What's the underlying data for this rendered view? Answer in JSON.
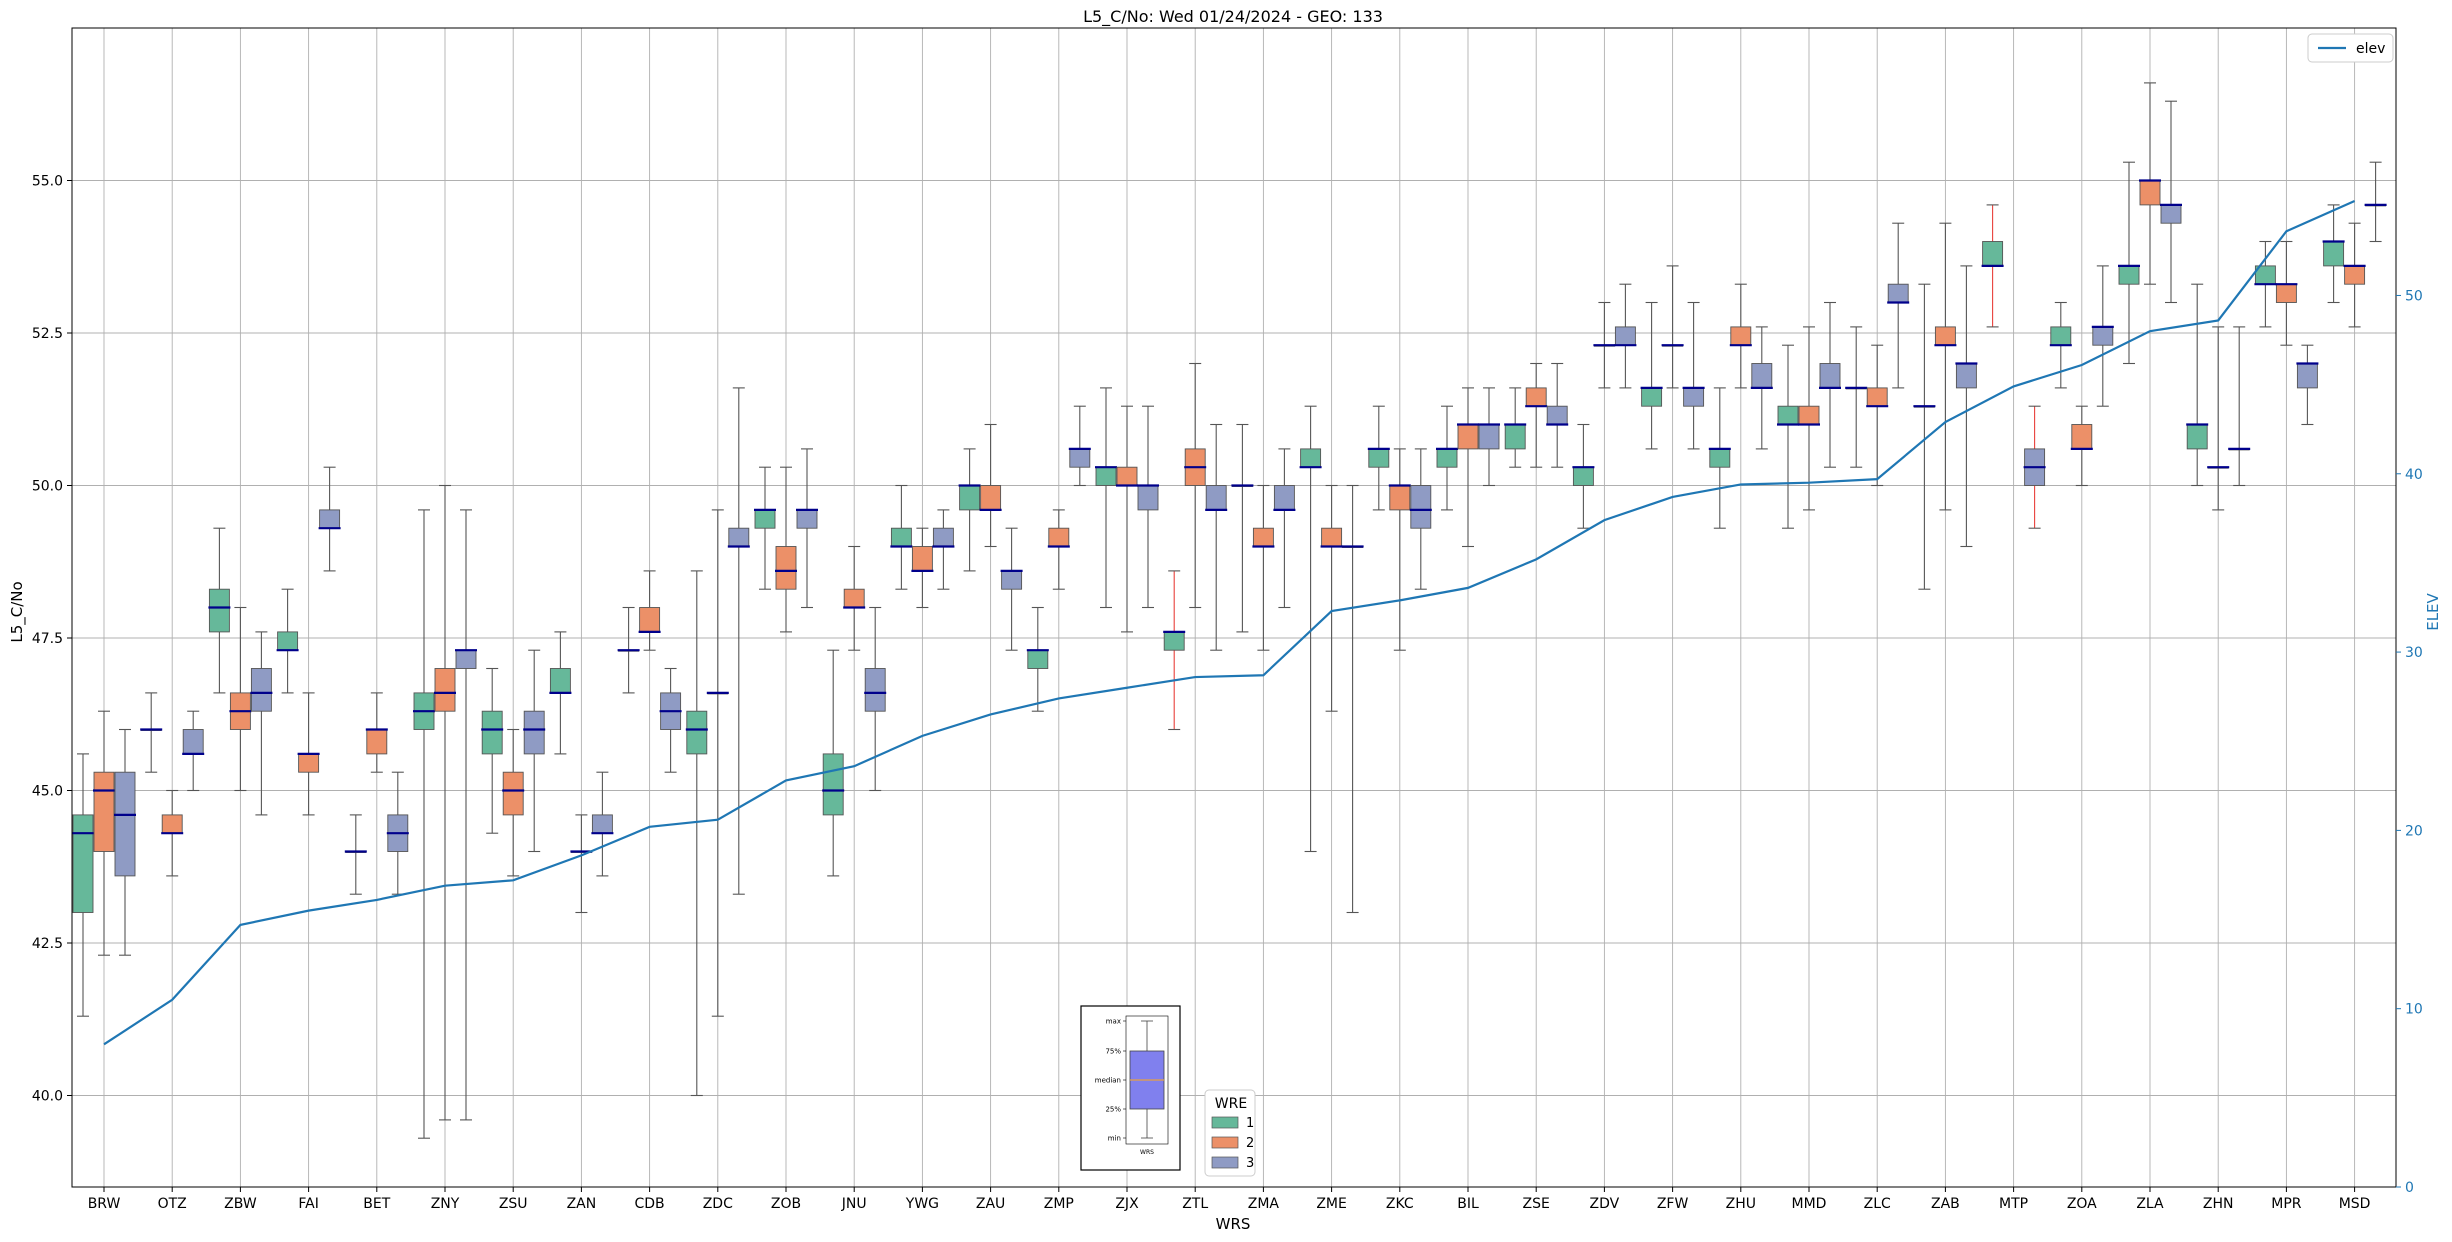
{
  "chart_data": {
    "type": "boxplot",
    "title": "L5_C/No: Wed 01/24/2024 - GEO: 133",
    "xlabel": "WRS",
    "ylabel": "L5_C/No",
    "y2label": "ELEV",
    "ylim": [
      38.5,
      57.5
    ],
    "y2lim": [
      0,
      65
    ],
    "yticks": [
      40.0,
      42.5,
      45.0,
      47.5,
      50.0,
      52.5,
      55.0
    ],
    "ytick_labels": [
      "40.0",
      "42.5",
      "45.0",
      "47.5",
      "50.0",
      "52.5",
      "55.0"
    ],
    "y2ticks": [
      0,
      10,
      20,
      30,
      40,
      50
    ],
    "y2tick_labels": [
      "0",
      "10",
      "20",
      "30",
      "40",
      "50"
    ],
    "grid": true,
    "categories": [
      "BRW",
      "OTZ",
      "ZBW",
      "FAI",
      "BET",
      "ZNY",
      "ZSU",
      "ZAN",
      "CDB",
      "ZDC",
      "ZOB",
      "JNU",
      "YWG",
      "ZAU",
      "ZMP",
      "ZJX",
      "ZTL",
      "ZMA",
      "ZME",
      "ZKC",
      "BIL",
      "ZSE",
      "ZDV",
      "ZFW",
      "ZHU",
      "MMD",
      "ZLC",
      "ZAB",
      "MTP",
      "ZOA",
      "ZLA",
      "ZHN",
      "MPR",
      "MSD"
    ],
    "wre_colors": {
      "1": "#66b89a",
      "2": "#ec9068",
      "3": "#8f9bc4"
    },
    "wre_legend": {
      "title": "WRE",
      "entries": [
        "1",
        "2",
        "3"
      ],
      "placement": "bottom-center"
    },
    "elev_legend": {
      "label": "elev",
      "placement": "top-right",
      "color": "#1f77b4"
    },
    "median_color": "#00008b",
    "outlier_whisker_color": "#e8413b",
    "boxes": [
      {
        "site": "BRW",
        "wre": "1",
        "min": 41.3,
        "q1": 43.0,
        "median": 44.3,
        "q3": 44.6,
        "max": 45.6
      },
      {
        "site": "BRW",
        "wre": "2",
        "min": 42.3,
        "q1": 44.0,
        "median": 45.0,
        "q3": 45.3,
        "max": 46.3
      },
      {
        "site": "BRW",
        "wre": "3",
        "min": 42.3,
        "q1": 43.6,
        "median": 44.6,
        "q3": 45.3,
        "max": 46.0
      },
      {
        "site": "OTZ",
        "wre": "1",
        "min": 45.3,
        "q1": 46.0,
        "median": 46.0,
        "q3": 46.0,
        "max": 46.6
      },
      {
        "site": "OTZ",
        "wre": "2",
        "min": 43.6,
        "q1": 44.3,
        "median": 44.3,
        "q3": 44.6,
        "max": 45.0
      },
      {
        "site": "OTZ",
        "wre": "3",
        "min": 45.0,
        "q1": 45.6,
        "median": 45.6,
        "q3": 46.0,
        "max": 46.3
      },
      {
        "site": "ZBW",
        "wre": "1",
        "min": 46.6,
        "q1": 47.6,
        "median": 48.0,
        "q3": 48.3,
        "max": 49.3
      },
      {
        "site": "ZBW",
        "wre": "2",
        "min": 45.0,
        "q1": 46.0,
        "median": 46.3,
        "q3": 46.6,
        "max": 48.0
      },
      {
        "site": "ZBW",
        "wre": "3",
        "min": 44.6,
        "q1": 46.3,
        "median": 46.6,
        "q3": 47.0,
        "max": 47.6
      },
      {
        "site": "FAI",
        "wre": "1",
        "min": 46.6,
        "q1": 47.3,
        "median": 47.3,
        "q3": 47.6,
        "max": 48.3
      },
      {
        "site": "FAI",
        "wre": "2",
        "min": 44.6,
        "q1": 45.3,
        "median": 45.6,
        "q3": 45.6,
        "max": 46.6
      },
      {
        "site": "FAI",
        "wre": "3",
        "min": 48.6,
        "q1": 49.3,
        "median": 49.3,
        "q3": 49.6,
        "max": 50.3
      },
      {
        "site": "BET",
        "wre": "1",
        "min": 43.3,
        "q1": 44.0,
        "median": 44.0,
        "q3": 44.0,
        "max": 44.6
      },
      {
        "site": "BET",
        "wre": "2",
        "min": 45.3,
        "q1": 45.6,
        "median": 46.0,
        "q3": 46.0,
        "max": 46.6
      },
      {
        "site": "BET",
        "wre": "3",
        "min": 43.3,
        "q1": 44.0,
        "median": 44.3,
        "q3": 44.6,
        "max": 45.3
      },
      {
        "site": "ZNY",
        "wre": "1",
        "min": 39.3,
        "q1": 46.0,
        "median": 46.3,
        "q3": 46.6,
        "max": 49.6
      },
      {
        "site": "ZNY",
        "wre": "2",
        "min": 39.6,
        "q1": 46.3,
        "median": 46.6,
        "q3": 47.0,
        "max": 50.0
      },
      {
        "site": "ZNY",
        "wre": "3",
        "min": 39.6,
        "q1": 47.0,
        "median": 47.3,
        "q3": 47.3,
        "max": 49.6
      },
      {
        "site": "ZSU",
        "wre": "1",
        "min": 44.3,
        "q1": 45.6,
        "median": 46.0,
        "q3": 46.3,
        "max": 47.0
      },
      {
        "site": "ZSU",
        "wre": "2",
        "min": 43.6,
        "q1": 44.6,
        "median": 45.0,
        "q3": 45.3,
        "max": 46.0
      },
      {
        "site": "ZSU",
        "wre": "3",
        "min": 44.0,
        "q1": 45.6,
        "median": 46.0,
        "q3": 46.3,
        "max": 47.3
      },
      {
        "site": "ZAN",
        "wre": "1",
        "min": 45.6,
        "q1": 46.6,
        "median": 46.6,
        "q3": 47.0,
        "max": 47.6
      },
      {
        "site": "ZAN",
        "wre": "2",
        "min": 43.0,
        "q1": 44.0,
        "median": 44.0,
        "q3": 44.0,
        "max": 44.6
      },
      {
        "site": "ZAN",
        "wre": "3",
        "min": 43.6,
        "q1": 44.3,
        "median": 44.3,
        "q3": 44.6,
        "max": 45.3
      },
      {
        "site": "CDB",
        "wre": "1",
        "min": 46.6,
        "q1": 47.3,
        "median": 47.3,
        "q3": 47.3,
        "max": 48.0
      },
      {
        "site": "CDB",
        "wre": "2",
        "min": 47.3,
        "q1": 47.6,
        "median": 47.6,
        "q3": 48.0,
        "max": 48.6
      },
      {
        "site": "CDB",
        "wre": "3",
        "min": 45.3,
        "q1": 46.0,
        "median": 46.3,
        "q3": 46.6,
        "max": 47.0
      },
      {
        "site": "ZDC",
        "wre": "1",
        "min": 40.0,
        "q1": 45.6,
        "median": 46.0,
        "q3": 46.3,
        "max": 48.6
      },
      {
        "site": "ZDC",
        "wre": "2",
        "min": 41.3,
        "q1": 46.6,
        "median": 46.6,
        "q3": 46.6,
        "max": 49.6
      },
      {
        "site": "ZDC",
        "wre": "3",
        "min": 43.3,
        "q1": 49.0,
        "median": 49.0,
        "q3": 49.3,
        "max": 51.6
      },
      {
        "site": "ZOB",
        "wre": "1",
        "min": 48.3,
        "q1": 49.3,
        "median": 49.6,
        "q3": 49.6,
        "max": 50.3
      },
      {
        "site": "ZOB",
        "wre": "2",
        "min": 47.6,
        "q1": 48.3,
        "median": 48.6,
        "q3": 49.0,
        "max": 50.3
      },
      {
        "site": "ZOB",
        "wre": "3",
        "min": 48.0,
        "q1": 49.3,
        "median": 49.6,
        "q3": 49.6,
        "max": 50.6
      },
      {
        "site": "JNU",
        "wre": "1",
        "min": 43.6,
        "q1": 44.6,
        "median": 45.0,
        "q3": 45.6,
        "max": 47.3
      },
      {
        "site": "JNU",
        "wre": "2",
        "min": 47.3,
        "q1": 48.0,
        "median": 48.0,
        "q3": 48.3,
        "max": 49.0
      },
      {
        "site": "JNU",
        "wre": "3",
        "min": 45.0,
        "q1": 46.3,
        "median": 46.6,
        "q3": 47.0,
        "max": 48.0
      },
      {
        "site": "YWG",
        "wre": "1",
        "min": 48.3,
        "q1": 49.0,
        "median": 49.0,
        "q3": 49.3,
        "max": 50.0
      },
      {
        "site": "YWG",
        "wre": "2",
        "min": 48.0,
        "q1": 48.6,
        "median": 48.6,
        "q3": 49.0,
        "max": 49.3
      },
      {
        "site": "YWG",
        "wre": "3",
        "min": 48.3,
        "q1": 49.0,
        "median": 49.0,
        "q3": 49.3,
        "max": 49.6
      },
      {
        "site": "ZAU",
        "wre": "1",
        "min": 48.6,
        "q1": 49.6,
        "median": 50.0,
        "q3": 50.0,
        "max": 50.6
      },
      {
        "site": "ZAU",
        "wre": "2",
        "min": 49.0,
        "q1": 49.6,
        "median": 49.6,
        "q3": 50.0,
        "max": 51.0
      },
      {
        "site": "ZAU",
        "wre": "3",
        "min": 47.3,
        "q1": 48.3,
        "median": 48.6,
        "q3": 48.6,
        "max": 49.3
      },
      {
        "site": "ZMP",
        "wre": "1",
        "min": 46.3,
        "q1": 47.0,
        "median": 47.3,
        "q3": 47.3,
        "max": 48.0
      },
      {
        "site": "ZMP",
        "wre": "2",
        "min": 48.3,
        "q1": 49.0,
        "median": 49.0,
        "q3": 49.3,
        "max": 49.6
      },
      {
        "site": "ZMP",
        "wre": "3",
        "min": 50.0,
        "q1": 50.3,
        "median": 50.6,
        "q3": 50.6,
        "max": 51.3
      },
      {
        "site": "ZJX",
        "wre": "1",
        "min": 48.0,
        "q1": 50.0,
        "median": 50.3,
        "q3": 50.3,
        "max": 51.6
      },
      {
        "site": "ZJX",
        "wre": "2",
        "min": 47.6,
        "q1": 50.0,
        "median": 50.0,
        "q3": 50.3,
        "max": 51.3
      },
      {
        "site": "ZJX",
        "wre": "3",
        "min": 48.0,
        "q1": 49.6,
        "median": 50.0,
        "q3": 50.0,
        "max": 51.3
      },
      {
        "site": "ZTL",
        "wre": "1",
        "min": 46.0,
        "q1": 47.3,
        "median": 47.6,
        "q3": 47.6,
        "max": 48.6,
        "outlier_whisker": true
      },
      {
        "site": "ZTL",
        "wre": "2",
        "min": 48.0,
        "q1": 50.0,
        "median": 50.3,
        "q3": 50.6,
        "max": 52.0
      },
      {
        "site": "ZTL",
        "wre": "3",
        "min": 47.3,
        "q1": 49.6,
        "median": 49.6,
        "q3": 50.0,
        "max": 51.0
      },
      {
        "site": "ZMA",
        "wre": "1",
        "min": 47.6,
        "q1": 50.0,
        "median": 50.0,
        "q3": 50.0,
        "max": 51.0
      },
      {
        "site": "ZMA",
        "wre": "2",
        "min": 47.3,
        "q1": 49.0,
        "median": 49.0,
        "q3": 49.3,
        "max": 50.0
      },
      {
        "site": "ZMA",
        "wre": "3",
        "min": 48.0,
        "q1": 49.6,
        "median": 49.6,
        "q3": 50.0,
        "max": 50.6
      },
      {
        "site": "ZME",
        "wre": "1",
        "min": 44.0,
        "q1": 50.3,
        "median": 50.3,
        "q3": 50.6,
        "max": 51.3
      },
      {
        "site": "ZME",
        "wre": "2",
        "min": 46.3,
        "q1": 49.0,
        "median": 49.0,
        "q3": 49.3,
        "max": 50.0
      },
      {
        "site": "ZME",
        "wre": "3",
        "min": 43.0,
        "q1": 49.0,
        "median": 49.0,
        "q3": 49.0,
        "max": 50.0
      },
      {
        "site": "ZKC",
        "wre": "1",
        "min": 49.6,
        "q1": 50.3,
        "median": 50.6,
        "q3": 50.6,
        "max": 51.3
      },
      {
        "site": "ZKC",
        "wre": "2",
        "min": 47.3,
        "q1": 49.6,
        "median": 50.0,
        "q3": 50.0,
        "max": 50.6
      },
      {
        "site": "ZKC",
        "wre": "3",
        "min": 48.3,
        "q1": 49.3,
        "median": 49.6,
        "q3": 50.0,
        "max": 50.6
      },
      {
        "site": "BIL",
        "wre": "1",
        "min": 49.6,
        "q1": 50.3,
        "median": 50.6,
        "q3": 50.6,
        "max": 51.3
      },
      {
        "site": "BIL",
        "wre": "2",
        "min": 49.0,
        "q1": 50.6,
        "median": 51.0,
        "q3": 51.0,
        "max": 51.6
      },
      {
        "site": "BIL",
        "wre": "3",
        "min": 50.0,
        "q1": 50.6,
        "median": 51.0,
        "q3": 51.0,
        "max": 51.6
      },
      {
        "site": "ZSE",
        "wre": "1",
        "min": 50.3,
        "q1": 50.6,
        "median": 51.0,
        "q3": 51.0,
        "max": 51.6
      },
      {
        "site": "ZSE",
        "wre": "2",
        "min": 50.3,
        "q1": 51.3,
        "median": 51.3,
        "q3": 51.6,
        "max": 52.0
      },
      {
        "site": "ZSE",
        "wre": "3",
        "min": 50.3,
        "q1": 51.0,
        "median": 51.0,
        "q3": 51.3,
        "max": 52.0
      },
      {
        "site": "ZDV",
        "wre": "1",
        "min": 49.3,
        "q1": 50.0,
        "median": 50.3,
        "q3": 50.3,
        "max": 51.0
      },
      {
        "site": "ZDV",
        "wre": "2",
        "min": 51.6,
        "q1": 52.3,
        "median": 52.3,
        "q3": 52.3,
        "max": 53.0
      },
      {
        "site": "ZDV",
        "wre": "3",
        "min": 51.6,
        "q1": 52.3,
        "median": 52.3,
        "q3": 52.6,
        "max": 53.3
      },
      {
        "site": "ZFW",
        "wre": "1",
        "min": 50.6,
        "q1": 51.3,
        "median": 51.6,
        "q3": 51.6,
        "max": 53.0
      },
      {
        "site": "ZFW",
        "wre": "2",
        "min": 51.6,
        "q1": 52.3,
        "median": 52.3,
        "q3": 52.3,
        "max": 53.6
      },
      {
        "site": "ZFW",
        "wre": "3",
        "min": 50.6,
        "q1": 51.3,
        "median": 51.6,
        "q3": 51.6,
        "max": 53.0
      },
      {
        "site": "ZHU",
        "wre": "1",
        "min": 49.3,
        "q1": 50.3,
        "median": 50.6,
        "q3": 50.6,
        "max": 51.6
      },
      {
        "site": "ZHU",
        "wre": "2",
        "min": 51.6,
        "q1": 52.3,
        "median": 52.3,
        "q3": 52.6,
        "max": 53.3
      },
      {
        "site": "ZHU",
        "wre": "3",
        "min": 50.6,
        "q1": 51.6,
        "median": 51.6,
        "q3": 52.0,
        "max": 52.6
      },
      {
        "site": "MMD",
        "wre": "1",
        "min": 49.3,
        "q1": 51.0,
        "median": 51.0,
        "q3": 51.3,
        "max": 52.3
      },
      {
        "site": "MMD",
        "wre": "2",
        "min": 49.6,
        "q1": 51.0,
        "median": 51.0,
        "q3": 51.3,
        "max": 52.6
      },
      {
        "site": "MMD",
        "wre": "3",
        "min": 50.3,
        "q1": 51.6,
        "median": 51.6,
        "q3": 52.0,
        "max": 53.0
      },
      {
        "site": "ZLC",
        "wre": "1",
        "min": 50.3,
        "q1": 51.6,
        "median": 51.6,
        "q3": 51.6,
        "max": 52.6
      },
      {
        "site": "ZLC",
        "wre": "2",
        "min": 50.0,
        "q1": 51.3,
        "median": 51.3,
        "q3": 51.6,
        "max": 52.3
      },
      {
        "site": "ZLC",
        "wre": "3",
        "min": 51.6,
        "q1": 53.0,
        "median": 53.0,
        "q3": 53.3,
        "max": 54.3
      },
      {
        "site": "ZAB",
        "wre": "1",
        "min": 48.3,
        "q1": 51.3,
        "median": 51.3,
        "q3": 51.3,
        "max": 53.3
      },
      {
        "site": "ZAB",
        "wre": "2",
        "min": 49.6,
        "q1": 52.3,
        "median": 52.3,
        "q3": 52.6,
        "max": 54.3
      },
      {
        "site": "ZAB",
        "wre": "3",
        "min": 49.0,
        "q1": 51.6,
        "median": 52.0,
        "q3": 52.0,
        "max": 53.6
      },
      {
        "site": "MTP",
        "wre": "1",
        "min": 52.6,
        "q1": 53.6,
        "median": 53.6,
        "q3": 54.0,
        "max": 54.6,
        "outlier_whisker": true
      },
      {
        "site": "MTP",
        "wre": "3",
        "min": 49.3,
        "q1": 50.0,
        "median": 50.3,
        "q3": 50.6,
        "max": 51.3,
        "outlier_whisker": true
      },
      {
        "site": "ZOA",
        "wre": "1",
        "min": 51.6,
        "q1": 52.3,
        "median": 52.3,
        "q3": 52.6,
        "max": 53.0
      },
      {
        "site": "ZOA",
        "wre": "2",
        "min": 50.0,
        "q1": 50.6,
        "median": 50.6,
        "q3": 51.0,
        "max": 51.3
      },
      {
        "site": "ZOA",
        "wre": "3",
        "min": 51.3,
        "q1": 52.3,
        "median": 52.6,
        "q3": 52.6,
        "max": 53.6
      },
      {
        "site": "ZLA",
        "wre": "1",
        "min": 52.0,
        "q1": 53.3,
        "median": 53.6,
        "q3": 53.6,
        "max": 55.3
      },
      {
        "site": "ZLA",
        "wre": "2",
        "min": 53.3,
        "q1": 54.6,
        "median": 55.0,
        "q3": 55.0,
        "max": 56.6
      },
      {
        "site": "ZLA",
        "wre": "3",
        "min": 53.0,
        "q1": 54.3,
        "median": 54.6,
        "q3": 54.6,
        "max": 56.3
      },
      {
        "site": "ZHN",
        "wre": "1",
        "min": 50.0,
        "q1": 50.6,
        "median": 51.0,
        "q3": 51.0,
        "max": 53.3
      },
      {
        "site": "ZHN",
        "wre": "2",
        "min": 49.6,
        "q1": 50.3,
        "median": 50.3,
        "q3": 50.3,
        "max": 52.6
      },
      {
        "site": "ZHN",
        "wre": "3",
        "min": 50.0,
        "q1": 50.6,
        "median": 50.6,
        "q3": 50.6,
        "max": 52.6
      },
      {
        "site": "MPR",
        "wre": "1",
        "min": 52.6,
        "q1": 53.3,
        "median": 53.3,
        "q3": 53.6,
        "max": 54.0
      },
      {
        "site": "MPR",
        "wre": "2",
        "min": 52.3,
        "q1": 53.0,
        "median": 53.3,
        "q3": 53.3,
        "max": 54.0
      },
      {
        "site": "MPR",
        "wre": "3",
        "min": 51.0,
        "q1": 51.6,
        "median": 52.0,
        "q3": 52.0,
        "max": 52.3
      },
      {
        "site": "MSD",
        "wre": "1",
        "min": 53.0,
        "q1": 53.6,
        "median": 54.0,
        "q3": 54.0,
        "max": 54.6
      },
      {
        "site": "MSD",
        "wre": "2",
        "min": 52.6,
        "q1": 53.3,
        "median": 53.6,
        "q3": 53.6,
        "max": 54.3
      },
      {
        "site": "MSD",
        "wre": "3",
        "min": 54.0,
        "q1": 54.6,
        "median": 54.6,
        "q3": 54.6,
        "max": 55.3
      }
    ],
    "elev_series": {
      "name": "elev",
      "values": [
        8.0,
        10.5,
        14.7,
        15.5,
        16.1,
        16.9,
        17.2,
        18.6,
        20.2,
        20.6,
        22.8,
        23.6,
        25.3,
        26.5,
        27.4,
        28.0,
        28.6,
        28.7,
        32.3,
        32.9,
        33.6,
        35.2,
        37.4,
        38.7,
        39.4,
        39.5,
        39.7,
        42.9,
        44.9,
        46.1,
        48.0,
        48.6,
        53.6,
        55.3
      ]
    },
    "inset_legend": {
      "labels": [
        "max",
        "75%",
        "median",
        "25%",
        "min"
      ],
      "xlabel": "WRS"
    }
  }
}
